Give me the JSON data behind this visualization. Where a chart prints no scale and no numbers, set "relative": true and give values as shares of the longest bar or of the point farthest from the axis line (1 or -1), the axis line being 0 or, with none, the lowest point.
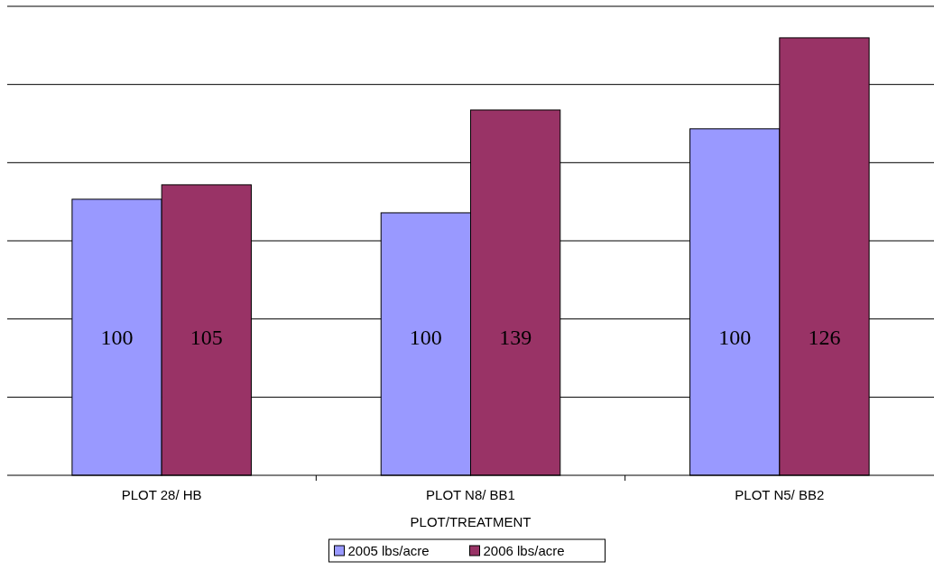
{
  "chart_data": {
    "type": "bar",
    "relative": true,
    "xlabel": "PLOT/TREATMENT",
    "categories": [
      "PLOT 28/ HB",
      "PLOT N8/ BB1",
      "PLOT N5/ BB2"
    ],
    "series": [
      {
        "name": "2005 lbs/acre",
        "color": "#9999ff",
        "values": [
          0.631,
          0.6,
          0.792
        ]
      },
      {
        "name": "2006 lbs/acre",
        "color": "#993366",
        "values": [
          0.664,
          0.835,
          1
        ]
      }
    ],
    "annotations": [
      {
        "text": "100",
        "x": "PLOT 28/ HB"
      },
      {
        "text": "105",
        "x": "PLOT 28/ HB"
      },
      {
        "text": "100",
        "x": "PLOT N8/ BB1"
      },
      {
        "text": "139",
        "x": "PLOT N8/ BB1"
      },
      {
        "text": "100",
        "x": "PLOT N5/ BB2"
      },
      {
        "text": "126",
        "x": "PLOT N5/ BB2"
      }
    ],
    "grid": "y",
    "legend": "bottom"
  }
}
